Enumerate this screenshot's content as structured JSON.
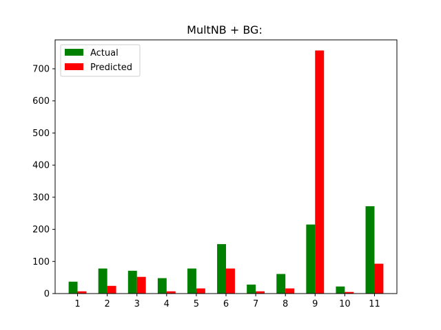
{
  "chart_data": {
    "type": "bar",
    "title": "MultNB + BG:",
    "xlabel": "",
    "ylabel": "",
    "categories": [
      "1",
      "2",
      "3",
      "4",
      "5",
      "6",
      "7",
      "8",
      "9",
      "10",
      "11"
    ],
    "series": [
      {
        "name": "Actual",
        "color": "#008000",
        "values": [
          37,
          78,
          71,
          48,
          78,
          154,
          28,
          61,
          215,
          22,
          272
        ]
      },
      {
        "name": "Predicted",
        "color": "#ff0000",
        "values": [
          7,
          24,
          52,
          7,
          16,
          78,
          7,
          16,
          757,
          5,
          93
        ]
      }
    ],
    "ylim": [
      0,
      790
    ],
    "yticks": [
      0,
      100,
      200,
      300,
      400,
      500,
      600,
      700
    ],
    "grid": false,
    "legend_position": "top-left"
  }
}
